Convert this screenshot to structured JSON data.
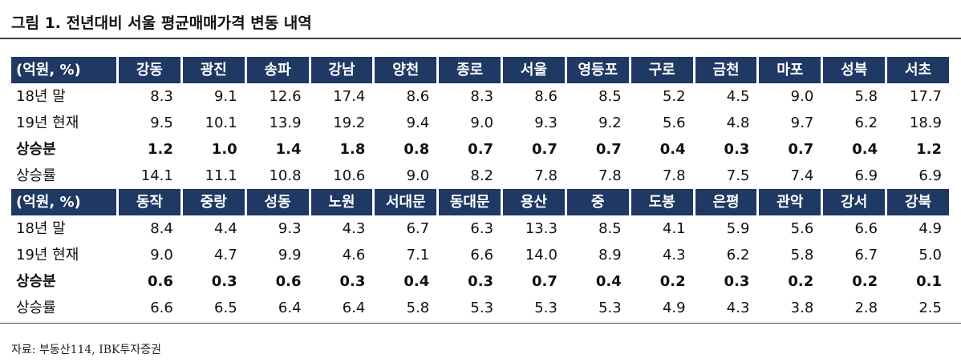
{
  "title": "그림 1. 전년대비 서울 평균매매가격 변동 내역",
  "tables": [
    {
      "header": [
        "(억원, %)",
        "강동",
        "광진",
        "송파",
        "강남",
        "양천",
        "종로",
        "서울",
        "영등포",
        "구로",
        "금천",
        "마포",
        "성북",
        "서초"
      ],
      "rows": [
        [
          "18년 말",
          "8.3",
          "9.1",
          "12.6",
          "17.4",
          "8.6",
          "8.3",
          "8.6",
          "8.5",
          "5.2",
          "4.5",
          "9.0",
          "5.8",
          "17.7"
        ],
        [
          "19년 현재",
          "9.5",
          "10.1",
          "13.9",
          "19.2",
          "9.4",
          "9.0",
          "9.3",
          "9.2",
          "5.6",
          "4.8",
          "9.7",
          "6.2",
          "18.9"
        ],
        [
          "상승분",
          "1.2",
          "1.0",
          "1.4",
          "1.8",
          "0.8",
          "0.7",
          "0.7",
          "0.7",
          "0.4",
          "0.3",
          "0.7",
          "0.4",
          "1.2"
        ],
        [
          "상승률",
          "14.1",
          "11.1",
          "10.8",
          "10.6",
          "9.0",
          "8.2",
          "7.8",
          "7.8",
          "7.8",
          "7.5",
          "7.4",
          "6.9",
          "6.9"
        ]
      ]
    },
    {
      "header": [
        "(억원, %)",
        "동작",
        "중랑",
        "성동",
        "노원",
        "서대문",
        "동대문",
        "용산",
        "중",
        "도봉",
        "은평",
        "관악",
        "강서",
        "강북"
      ],
      "rows": [
        [
          "18년 말",
          "8.4",
          "4.4",
          "9.3",
          "4.3",
          "6.7",
          "6.3",
          "13.3",
          "8.5",
          "4.1",
          "5.9",
          "5.6",
          "6.6",
          "4.9"
        ],
        [
          "19년 현재",
          "9.0",
          "4.7",
          "9.9",
          "4.6",
          "7.1",
          "6.6",
          "14.0",
          "8.9",
          "4.3",
          "6.2",
          "5.8",
          "6.7",
          "5.0"
        ],
        [
          "상승분",
          "0.6",
          "0.3",
          "0.6",
          "0.3",
          "0.4",
          "0.3",
          "0.7",
          "0.4",
          "0.2",
          "0.3",
          "0.2",
          "0.2",
          "0.1"
        ],
        [
          "상승률",
          "6.6",
          "6.5",
          "6.4",
          "6.4",
          "5.8",
          "5.3",
          "5.3",
          "5.3",
          "4.9",
          "4.3",
          "3.8",
          "2.8",
          "2.5"
        ]
      ]
    }
  ],
  "source": "자료: 부동산114, IBK투자증권"
}
